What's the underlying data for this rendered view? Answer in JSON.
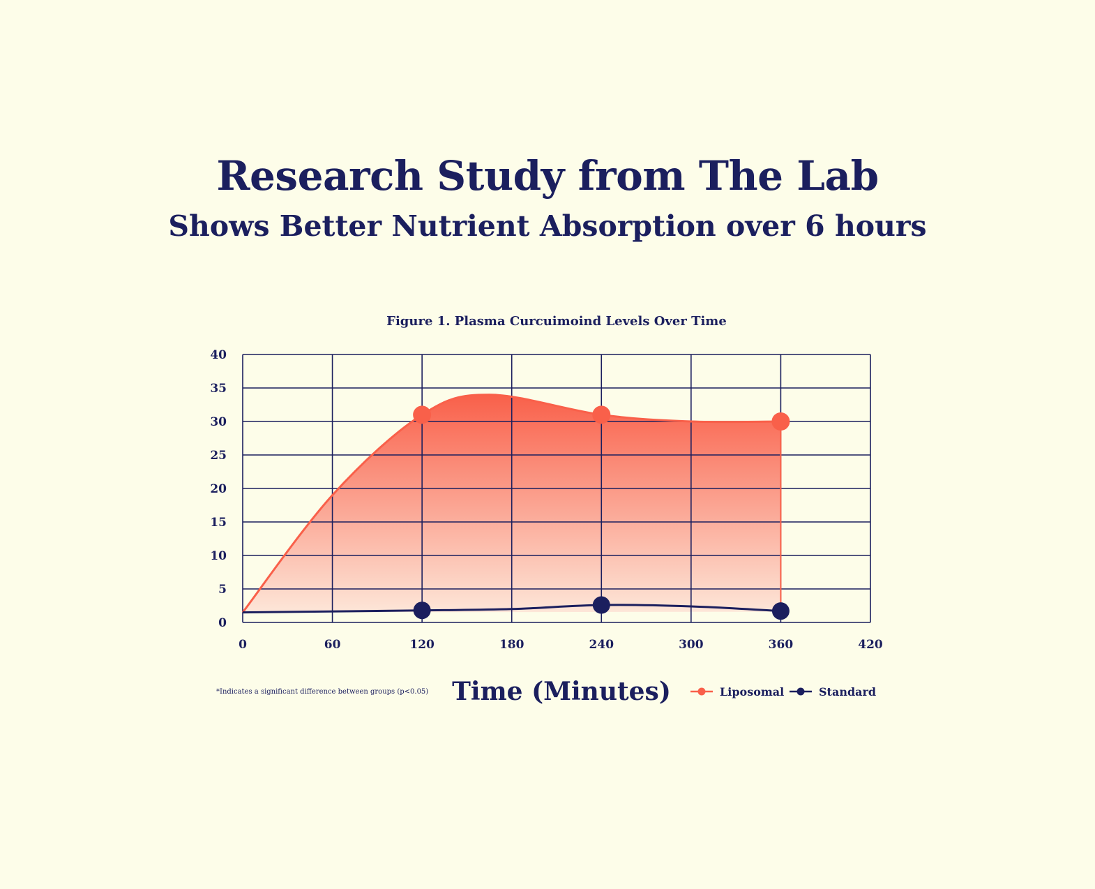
{
  "header": {
    "title": "Research Study from The Lab",
    "subtitle": "Shows Better Nutrient Absorption over 6 hours"
  },
  "footnote": "*Indicates a significant difference between groups (p<0.05)",
  "colors": {
    "background": "#fdfde9",
    "navy": "#1b1f5e",
    "liposomal": "#f9604a",
    "liposomal_light": "#fde6d8"
  },
  "chart_data": {
    "type": "area",
    "title": "Figure 1. Plasma Curcuimoind Levels Over Time",
    "xlabel": "Time (Minutes)",
    "ylabel": "",
    "xlim": [
      0,
      420
    ],
    "ylim": [
      0,
      40
    ],
    "x_ticks": [
      0,
      60,
      120,
      180,
      240,
      300,
      360,
      420
    ],
    "y_ticks": [
      0,
      5,
      10,
      15,
      20,
      25,
      30,
      35,
      40
    ],
    "grid": true,
    "legend": "bottom-right",
    "series": [
      {
        "name": "Liposomal",
        "color": "#f9604a",
        "filled": true,
        "x": [
          0,
          60,
          120,
          165,
          240,
          300,
          360
        ],
        "y": [
          1.5,
          19,
          31,
          34,
          31,
          30,
          30
        ],
        "markers_at": [
          120,
          240,
          360
        ]
      },
      {
        "name": "Standard",
        "color": "#1b1f5e",
        "filled": false,
        "x": [
          0,
          120,
          180,
          240,
          300,
          360
        ],
        "y": [
          1.5,
          1.8,
          2.0,
          2.6,
          2.4,
          1.7
        ],
        "markers_at": [
          120,
          240,
          360
        ]
      }
    ]
  }
}
